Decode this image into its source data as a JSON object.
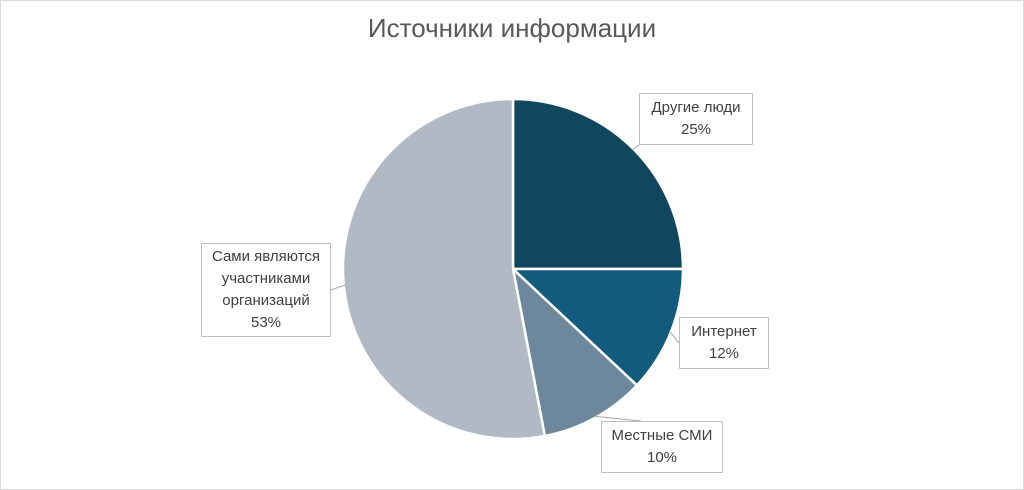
{
  "chart_data": {
    "type": "pie",
    "title": "Источники информации",
    "slices": [
      {
        "label": "Другие люди",
        "value": 25,
        "value_label": "25%",
        "color": "#10475f"
      },
      {
        "label": "Интернет",
        "value": 12,
        "value_label": "12%",
        "color": "#135b7c"
      },
      {
        "label": "Местные СМИ",
        "value": 10,
        "value_label": "10%",
        "color": "#6d889c"
      },
      {
        "label": "Сами являются участниками организаций",
        "value": 53,
        "value_label": "53%",
        "color": "#b0b9c4"
      }
    ],
    "legend": "none"
  }
}
